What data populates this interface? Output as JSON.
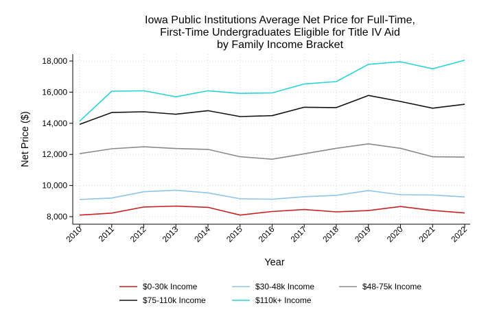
{
  "chart_data": {
    "type": "line",
    "title_lines": [
      "Iowa Public Institutions Average Net Price for Full-Time,",
      "First-Time Undergraduates Eligible for Title IV Aid",
      "by Family Income Bracket"
    ],
    "xlabel": "Year",
    "ylabel": "Net Price ($)",
    "x": [
      "2010",
      "2011",
      "2012",
      "2013",
      "2014",
      "2015",
      "2016",
      "2017",
      "2018",
      "2019",
      "2020",
      "2021",
      "2022"
    ],
    "ylim": [
      7800,
      18300
    ],
    "yticks": [
      8000,
      10000,
      12000,
      14000,
      16000,
      18000
    ],
    "ytick_labels": [
      "8,000",
      "10,000",
      "12,000",
      "14,000",
      "16,000",
      "18,000"
    ],
    "grid": true,
    "legend_position": "bottom",
    "series": [
      {
        "name": "$0-30k Income",
        "color": "#cc1f1f",
        "values": [
          8100,
          8230,
          8620,
          8680,
          8600,
          8100,
          8330,
          8460,
          8310,
          8390,
          8650,
          8400,
          8240
        ]
      },
      {
        "name": "$30-48k Income",
        "color": "#8ec5e8",
        "values": [
          9100,
          9200,
          9600,
          9700,
          9530,
          9150,
          9120,
          9280,
          9370,
          9680,
          9410,
          9390,
          9270
        ]
      },
      {
        "name": "$48-75k Income",
        "color": "#8a8a8a",
        "values": [
          12050,
          12360,
          12490,
          12380,
          12320,
          11850,
          11690,
          12040,
          12390,
          12680,
          12390,
          11850,
          11830
        ]
      },
      {
        "name": "$75-110k Income",
        "color": "#111111",
        "values": [
          13930,
          14690,
          14740,
          14580,
          14810,
          14430,
          14490,
          15030,
          15010,
          15790,
          15400,
          14970,
          15220
        ]
      },
      {
        "name": "$110k+ Income",
        "color": "#29d3d6",
        "values": [
          14130,
          16060,
          16090,
          15700,
          16090,
          15920,
          15950,
          16530,
          16680,
          17790,
          17950,
          17500,
          18050
        ]
      }
    ]
  }
}
